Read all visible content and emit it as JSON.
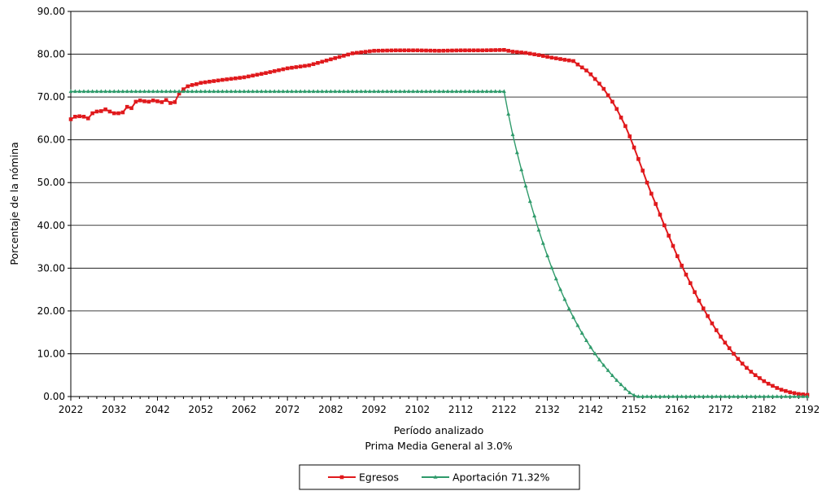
{
  "chart_data": {
    "type": "line",
    "title": "",
    "xlabel": "Período analizado",
    "xlabel_sub": "Prima Media General al 3.0%",
    "ylabel": "Porcentaje de la nómina",
    "xlim": [
      2022,
      2192
    ],
    "ylim": [
      0,
      90
    ],
    "x_ticks": [
      "2022",
      "2032",
      "2042",
      "2052",
      "2062",
      "2072",
      "2082",
      "2092",
      "2102",
      "2112",
      "2122",
      "2132",
      "2142",
      "2152",
      "2162",
      "2172",
      "2182",
      "2192"
    ],
    "y_ticks": [
      "0.00",
      "10.00",
      "20.00",
      "30.00",
      "40.00",
      "50.00",
      "60.00",
      "70.00",
      "80.00",
      "90.00"
    ],
    "grid": "horizontal",
    "legend_position": "bottom-center",
    "series": [
      {
        "name": "Egresos",
        "color": "#e0191c",
        "marker": "square",
        "points": [
          [
            2022,
            64.8
          ],
          [
            2023,
            65.4
          ],
          [
            2024,
            65.5
          ],
          [
            2025,
            65.4
          ],
          [
            2026,
            65.0
          ],
          [
            2027,
            66.2
          ],
          [
            2028,
            66.6
          ],
          [
            2029,
            66.7
          ],
          [
            2030,
            67.1
          ],
          [
            2031,
            66.6
          ],
          [
            2032,
            66.2
          ],
          [
            2033,
            66.2
          ],
          [
            2034,
            66.4
          ],
          [
            2035,
            67.7
          ],
          [
            2036,
            67.4
          ],
          [
            2037,
            68.9
          ],
          [
            2038,
            69.2
          ],
          [
            2039,
            69.0
          ],
          [
            2040,
            68.9
          ],
          [
            2041,
            69.2
          ],
          [
            2042,
            69.0
          ],
          [
            2043,
            68.8
          ],
          [
            2044,
            69.3
          ],
          [
            2045,
            68.6
          ],
          [
            2046,
            68.8
          ],
          [
            2047,
            70.8
          ],
          [
            2048,
            71.8
          ],
          [
            2049,
            72.5
          ],
          [
            2050,
            72.8
          ],
          [
            2051,
            73.0
          ],
          [
            2052,
            73.3
          ],
          [
            2057,
            74.0
          ],
          [
            2062,
            74.6
          ],
          [
            2067,
            75.6
          ],
          [
            2072,
            76.7
          ],
          [
            2077,
            77.4
          ],
          [
            2082,
            78.8
          ],
          [
            2087,
            80.2
          ],
          [
            2092,
            80.8
          ],
          [
            2097,
            80.9
          ],
          [
            2102,
            80.9
          ],
          [
            2107,
            80.8
          ],
          [
            2112,
            80.9
          ],
          [
            2117,
            80.9
          ],
          [
            2122,
            81.0
          ],
          [
            2124,
            80.6
          ],
          [
            2127,
            80.3
          ],
          [
            2130,
            79.8
          ],
          [
            2133,
            79.2
          ],
          [
            2136,
            78.7
          ],
          [
            2138,
            78.4
          ],
          [
            2139,
            77.6
          ],
          [
            2140,
            76.9
          ],
          [
            2141,
            76.2
          ],
          [
            2142,
            75.3
          ],
          [
            2143,
            74.2
          ],
          [
            2144,
            73.1
          ],
          [
            2145,
            71.9
          ],
          [
            2146,
            70.4
          ],
          [
            2147,
            68.9
          ],
          [
            2148,
            67.2
          ],
          [
            2149,
            65.2
          ],
          [
            2150,
            63.2
          ],
          [
            2151,
            60.8
          ],
          [
            2152,
            58.2
          ],
          [
            2153,
            55.5
          ],
          [
            2154,
            52.8
          ],
          [
            2155,
            50.0
          ],
          [
            2156,
            47.4
          ],
          [
            2157,
            45.0
          ],
          [
            2158,
            42.5
          ],
          [
            2159,
            40.0
          ],
          [
            2160,
            37.6
          ],
          [
            2161,
            35.2
          ],
          [
            2162,
            32.8
          ],
          [
            2163,
            30.6
          ],
          [
            2164,
            28.5
          ],
          [
            2165,
            26.5
          ],
          [
            2166,
            24.4
          ],
          [
            2167,
            22.4
          ],
          [
            2168,
            20.6
          ],
          [
            2169,
            18.8
          ],
          [
            2170,
            17.1
          ],
          [
            2171,
            15.5
          ],
          [
            2172,
            14.0
          ],
          [
            2173,
            12.6
          ],
          [
            2174,
            11.3
          ],
          [
            2175,
            10.0
          ],
          [
            2176,
            8.8
          ],
          [
            2177,
            7.7
          ],
          [
            2178,
            6.7
          ],
          [
            2179,
            5.8
          ],
          [
            2180,
            5.0
          ],
          [
            2181,
            4.3
          ],
          [
            2182,
            3.6
          ],
          [
            2183,
            3.0
          ],
          [
            2184,
            2.5
          ],
          [
            2185,
            2.0
          ],
          [
            2186,
            1.6
          ],
          [
            2187,
            1.3
          ],
          [
            2188,
            1.0
          ],
          [
            2189,
            0.8
          ],
          [
            2190,
            0.6
          ],
          [
            2191,
            0.5
          ],
          [
            2192,
            0.4
          ]
        ]
      },
      {
        "name": "Aportación 71.32%",
        "color": "#2e9a6a",
        "marker": "triangle",
        "points": [
          [
            2022,
            71.3
          ],
          [
            2122,
            71.3
          ],
          [
            2123,
            66.0
          ],
          [
            2124,
            61.2
          ],
          [
            2125,
            57.0
          ],
          [
            2126,
            53.0
          ],
          [
            2127,
            49.2
          ],
          [
            2128,
            45.6
          ],
          [
            2129,
            42.2
          ],
          [
            2130,
            38.9
          ],
          [
            2131,
            35.8
          ],
          [
            2132,
            32.9
          ],
          [
            2133,
            30.1
          ],
          [
            2134,
            27.5
          ],
          [
            2135,
            25.0
          ],
          [
            2136,
            22.7
          ],
          [
            2137,
            20.5
          ],
          [
            2138,
            18.5
          ],
          [
            2139,
            16.6
          ],
          [
            2140,
            14.8
          ],
          [
            2141,
            13.1
          ],
          [
            2142,
            11.5
          ],
          [
            2143,
            10.0
          ],
          [
            2144,
            8.6
          ],
          [
            2145,
            7.3
          ],
          [
            2146,
            6.1
          ],
          [
            2147,
            4.9
          ],
          [
            2148,
            3.8
          ],
          [
            2149,
            2.8
          ],
          [
            2150,
            1.8
          ],
          [
            2151,
            0.9
          ],
          [
            2152,
            0.3
          ],
          [
            2153,
            0.0
          ],
          [
            2192,
            0.0
          ]
        ]
      }
    ]
  }
}
